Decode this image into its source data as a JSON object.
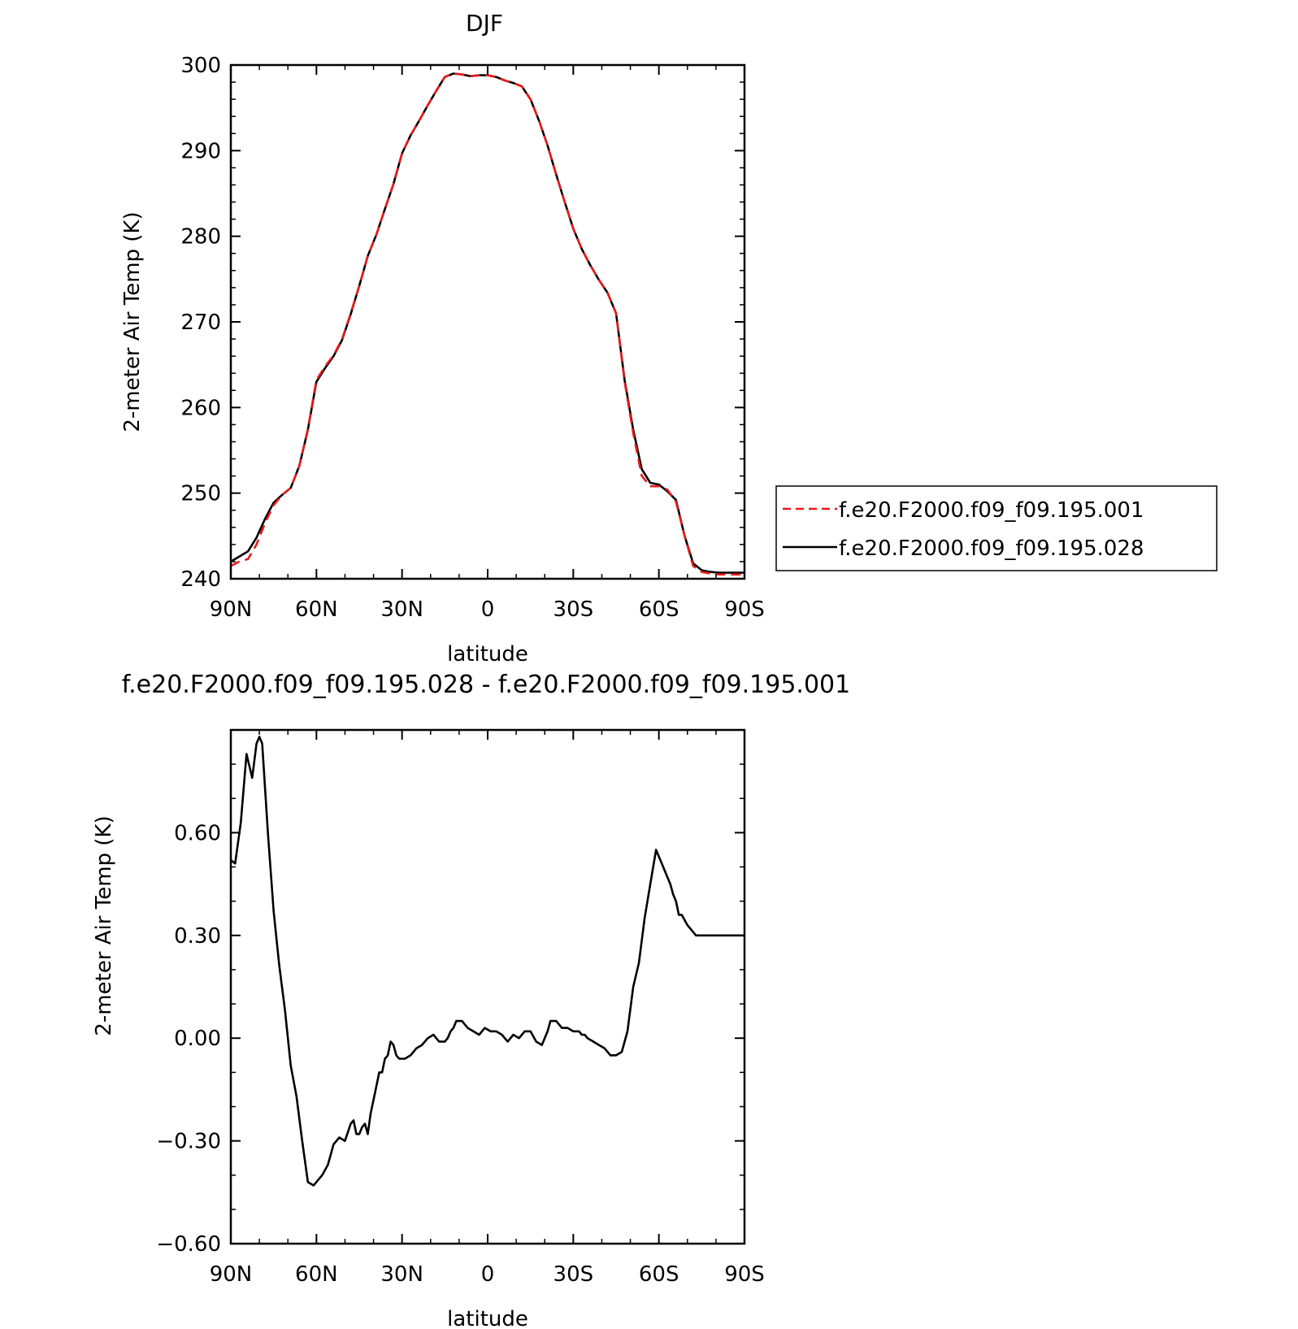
{
  "chart_data": [
    {
      "type": "line",
      "title": "DJF",
      "xlabel": "latitude",
      "ylabel": "2-meter Air Temp (K)",
      "xlim": [
        90,
        -90
      ],
      "ylim": [
        240,
        300
      ],
      "x_ticks": [
        {
          "value": 90,
          "label": "90N"
        },
        {
          "value": 60,
          "label": "60N"
        },
        {
          "value": 30,
          "label": "30N"
        },
        {
          "value": 0,
          "label": "0"
        },
        {
          "value": -30,
          "label": "30S"
        },
        {
          "value": -60,
          "label": "60S"
        },
        {
          "value": -90,
          "label": "90S"
        }
      ],
      "y_ticks": [
        {
          "value": 240,
          "label": "240"
        },
        {
          "value": 250,
          "label": "250"
        },
        {
          "value": 260,
          "label": "260"
        },
        {
          "value": 270,
          "label": "270"
        },
        {
          "value": 280,
          "label": "280"
        },
        {
          "value": 290,
          "label": "290"
        },
        {
          "value": 300,
          "label": "300"
        }
      ],
      "legend_position": "right",
      "series": [
        {
          "name": "f.e20.F2000.f09_f09.195.001",
          "color": "#e8191a",
          "style": "dashed",
          "x": [
            90,
            87,
            84,
            81,
            78,
            75,
            72,
            69,
            66,
            63,
            60,
            57,
            54,
            51,
            48,
            45,
            42,
            39,
            36,
            33,
            30,
            27,
            24,
            21,
            18,
            15,
            12,
            9,
            6,
            3,
            0,
            -3,
            -6,
            -9,
            -12,
            -15,
            -18,
            -21,
            -24,
            -27,
            -30,
            -33,
            -36,
            -39,
            -42,
            -45,
            -48,
            -51,
            -54,
            -57,
            -60,
            -63,
            -66,
            -69,
            -72,
            -75,
            -78,
            -81,
            -84,
            -87,
            -90
          ],
          "y": [
            241.5,
            242.0,
            242.3,
            244.0,
            246.5,
            248.6,
            249.8,
            250.6,
            253.2,
            257.5,
            263.2,
            264.8,
            266.1,
            268.0,
            271.0,
            274.2,
            277.7,
            280.2,
            283.2,
            286.1,
            289.7,
            291.8,
            293.5,
            295.3,
            297.0,
            298.6,
            299.0,
            298.9,
            298.7,
            298.8,
            298.8,
            298.6,
            298.2,
            297.9,
            297.5,
            296.0,
            293.5,
            290.6,
            287.2,
            284.0,
            280.9,
            278.5,
            276.6,
            274.9,
            273.4,
            271.0,
            263.0,
            257.0,
            252.0,
            250.8,
            250.8,
            250.4,
            249.0,
            245.0,
            241.5,
            240.8,
            240.6,
            240.5,
            240.5,
            240.5,
            240.5
          ]
        },
        {
          "name": "f.e20.F2000.f09_f09.195.028",
          "color": "#000000",
          "style": "solid",
          "x": [
            90,
            87,
            84,
            81,
            78,
            75,
            72,
            69,
            66,
            63,
            60,
            57,
            54,
            51,
            48,
            45,
            42,
            39,
            36,
            33,
            30,
            27,
            24,
            21,
            18,
            15,
            12,
            9,
            6,
            3,
            0,
            -3,
            -6,
            -9,
            -12,
            -15,
            -18,
            -21,
            -24,
            -27,
            -30,
            -33,
            -36,
            -39,
            -42,
            -45,
            -48,
            -51,
            -54,
            -57,
            -60,
            -63,
            -66,
            -69,
            -72,
            -75,
            -78,
            -81,
            -84,
            -87,
            -90
          ],
          "y": [
            242.0,
            242.6,
            243.2,
            244.8,
            247.0,
            248.9,
            249.8,
            250.6,
            253.2,
            257.4,
            263.0,
            264.6,
            266.0,
            267.9,
            270.9,
            274.2,
            277.7,
            280.2,
            283.2,
            286.1,
            289.7,
            291.8,
            293.5,
            295.3,
            297.0,
            298.6,
            299.0,
            298.9,
            298.7,
            298.8,
            298.8,
            298.6,
            298.2,
            297.9,
            297.5,
            296.0,
            293.5,
            290.6,
            287.2,
            284.0,
            280.9,
            278.5,
            276.6,
            274.9,
            273.4,
            271.0,
            263.2,
            257.4,
            252.8,
            251.2,
            251.0,
            250.2,
            249.2,
            245.0,
            241.8,
            241.0,
            240.8,
            240.7,
            240.7,
            240.7,
            240.7
          ]
        }
      ]
    },
    {
      "type": "line",
      "title": "f.e20.F2000.f09_f09.195.028 - f.e20.F2000.f09_f09.195.001",
      "xlabel": "latitude",
      "ylabel": "2-meter Air Temp (K)",
      "xlim": [
        90,
        -90
      ],
      "ylim": [
        -0.6,
        0.9
      ],
      "x_ticks": [
        {
          "value": 90,
          "label": "90N"
        },
        {
          "value": 60,
          "label": "60N"
        },
        {
          "value": 30,
          "label": "30N"
        },
        {
          "value": 0,
          "label": "0"
        },
        {
          "value": -30,
          "label": "30S"
        },
        {
          "value": -60,
          "label": "60S"
        },
        {
          "value": -90,
          "label": "90S"
        }
      ],
      "y_ticks": [
        {
          "value": -0.6,
          "label": "−0.60"
        },
        {
          "value": -0.3,
          "label": "−0.30"
        },
        {
          "value": 0.0,
          "label": "0.00"
        },
        {
          "value": 0.3,
          "label": "0.30"
        },
        {
          "value": 0.6,
          "label": "0.60"
        }
      ],
      "series": [
        {
          "color": "#000000",
          "style": "solid",
          "x": [
            90,
            88.5,
            87.5,
            86.5,
            84.5,
            82.5,
            81,
            80,
            79,
            77,
            75,
            73,
            71,
            69,
            67,
            65,
            63,
            61,
            60,
            58,
            56,
            54,
            52,
            50,
            48,
            47,
            46,
            45,
            44,
            43,
            42,
            41,
            40,
            38,
            37,
            36,
            35,
            34,
            33,
            32,
            31,
            29,
            27,
            25,
            23,
            21,
            19,
            17,
            15,
            14,
            13,
            12,
            11,
            10,
            9,
            8,
            7,
            5,
            3,
            1,
            -1,
            -3,
            -5,
            -7,
            -9,
            -11,
            -13,
            -15,
            -17,
            -19,
            -21,
            -22,
            -23,
            -24,
            -25,
            -26,
            -28,
            -30,
            -31,
            -32,
            -33,
            -34,
            -35,
            -37,
            -39,
            -41,
            -43,
            -45,
            -47,
            -49,
            -51,
            -53,
            -55,
            -57,
            -59,
            -61,
            -62,
            -63,
            -64,
            -65,
            -66,
            -67,
            -68,
            -70,
            -72,
            -73,
            -74,
            -75,
            -76,
            -77,
            -78,
            -80,
            -81,
            -82,
            -83,
            -84,
            -85,
            -86,
            -87,
            -88,
            -89,
            -90
          ],
          "y": [
            0.52,
            0.51,
            0.57,
            0.63,
            0.83,
            0.76,
            0.86,
            0.88,
            0.86,
            0.6,
            0.37,
            0.21,
            0.08,
            -0.08,
            -0.17,
            -0.3,
            -0.42,
            -0.43,
            -0.42,
            -0.4,
            -0.37,
            -0.31,
            -0.29,
            -0.3,
            -0.25,
            -0.24,
            -0.28,
            -0.28,
            -0.26,
            -0.25,
            -0.28,
            -0.22,
            -0.18,
            -0.1,
            -0.1,
            -0.06,
            -0.05,
            -0.01,
            -0.02,
            -0.05,
            -0.06,
            -0.06,
            -0.05,
            -0.03,
            -0.02,
            0.0,
            0.01,
            -0.01,
            -0.01,
            0.0,
            0.02,
            0.03,
            0.05,
            0.05,
            0.05,
            0.04,
            0.03,
            0.02,
            0.01,
            0.03,
            0.02,
            0.02,
            0.01,
            -0.01,
            0.01,
            0.0,
            0.02,
            0.02,
            -0.01,
            -0.02,
            0.02,
            0.05,
            0.05,
            0.05,
            0.04,
            0.03,
            0.03,
            0.02,
            0.02,
            0.02,
            0.01,
            0.01,
            0.0,
            -0.01,
            -0.02,
            -0.03,
            -0.05,
            -0.05,
            -0.04,
            0.02,
            0.15,
            0.22,
            0.35,
            0.45,
            0.55,
            0.51,
            0.49,
            0.47,
            0.45,
            0.42,
            0.4,
            0.36,
            0.36,
            0.33,
            0.31,
            0.3,
            0.3,
            0.3,
            0.3,
            0.3,
            0.3,
            0.3,
            0.3,
            0.3,
            0.3,
            0.3,
            0.3,
            0.3,
            0.3,
            0.3,
            0.3,
            0.3
          ]
        }
      ]
    }
  ]
}
